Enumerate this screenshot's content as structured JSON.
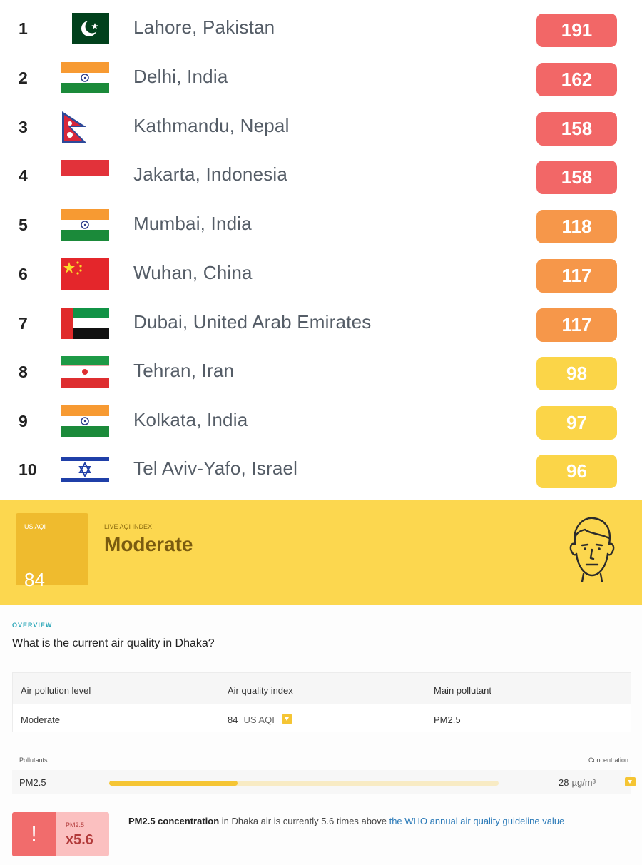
{
  "ranking": [
    {
      "rank": "1",
      "city": "Lahore, Pakistan",
      "aqi": "191",
      "flag": "pakistan-flag-icon",
      "color": "#f26767"
    },
    {
      "rank": "2",
      "city": "Delhi, India",
      "aqi": "162",
      "flag": "india-flag-icon",
      "color": "#f26767"
    },
    {
      "rank": "3",
      "city": "Kathmandu, Nepal",
      "aqi": "158",
      "flag": "nepal-flag-icon",
      "color": "#f26767"
    },
    {
      "rank": "4",
      "city": "Jakarta, Indonesia",
      "aqi": "158",
      "flag": "indonesia-flag-icon",
      "color": "#f26767"
    },
    {
      "rank": "5",
      "city": "Mumbai, India",
      "aqi": "118",
      "flag": "india-flag-icon",
      "color": "#f6974a"
    },
    {
      "rank": "6",
      "city": "Wuhan, China",
      "aqi": "117",
      "flag": "china-flag-icon",
      "color": "#f6974a"
    },
    {
      "rank": "7",
      "city": "Dubai, United Arab Emirates",
      "aqi": "117",
      "flag": "uae-flag-icon",
      "color": "#f6974a"
    },
    {
      "rank": "8",
      "city": "Tehran, Iran",
      "aqi": "98",
      "flag": "iran-flag-icon",
      "color": "#fbd548"
    },
    {
      "rank": "9",
      "city": "Kolkata, India",
      "aqi": "97",
      "flag": "india-flag-icon",
      "color": "#fbd548"
    },
    {
      "rank": "10",
      "city": "Tel Aviv-Yafo, Israel",
      "aqi": "96",
      "flag": "israel-flag-icon",
      "color": "#fbd548"
    }
  ],
  "banner": {
    "aqi_label": "US AQI",
    "aqi_value": "84",
    "live_label": "LIVE AQI INDEX",
    "level": "Moderate",
    "face_icon": "neutral-face-icon",
    "bg_color": "#fcd74f"
  },
  "overview": {
    "label": "OVERVIEW",
    "question": "What is the current air quality in Dhaka?",
    "table": {
      "headers": [
        "Air pollution level",
        "Air quality index",
        "Main pollutant"
      ],
      "level": "Moderate",
      "aqi_value": "84",
      "aqi_unit": "US AQI",
      "pollutant": "PM2.5"
    },
    "pollutants": {
      "header_left": "Pollutants",
      "header_right": "Concentration",
      "name": "PM2.5",
      "value": "28",
      "unit": "µg/m³",
      "level_fraction": 0.33
    },
    "warning": {
      "icon": "exclamation-icon",
      "label": "PM2.5",
      "multiplier": "x5.6",
      "bold": "PM2.5 concentration",
      "text": " in Dhaka air is currently 5.6 times above ",
      "link": "the WHO annual air quality guideline value"
    }
  }
}
